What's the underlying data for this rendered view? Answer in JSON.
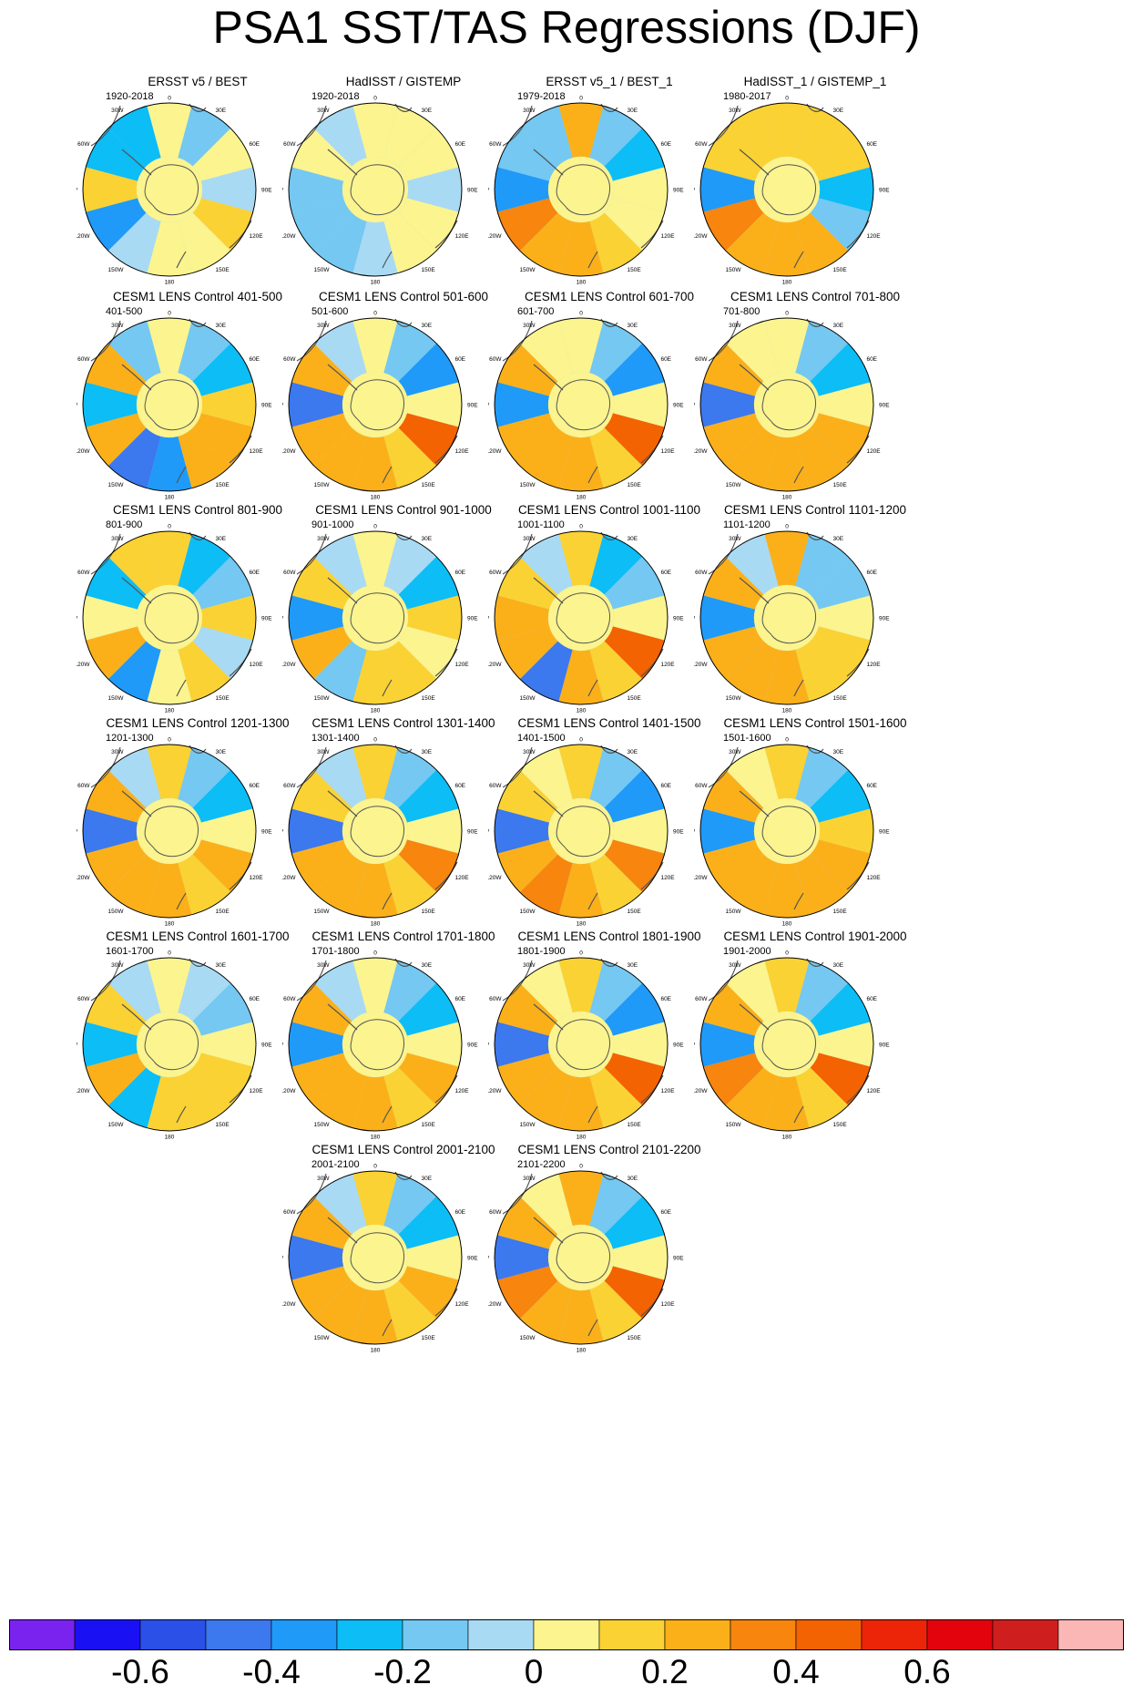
{
  "title": "PSA1 SST/TAS Regressions (DJF)",
  "chart_data": {
    "type": "heatmap",
    "map_projection": "south polar stereographic",
    "longitude_labels": [
      "0",
      "30E",
      "60E",
      "90E",
      "120E",
      "150E",
      "180",
      "150W",
      "120W",
      "90W",
      "60W",
      "30W"
    ],
    "panels": [
      {
        "title": "ERSST v5 / BEST",
        "period": "1920-2018",
        "values": [
          0.05,
          -0.1,
          0.05,
          0.0,
          0.1,
          0.05,
          0.05,
          -0.05,
          -0.35,
          0.15,
          -0.25,
          -0.2
        ]
      },
      {
        "title": "HadISST / GISTEMP",
        "period": "1920-2018",
        "values": [
          0.05,
          0.05,
          0.05,
          -0.05,
          0.05,
          0.05,
          0.0,
          -0.15,
          -0.1,
          -0.1,
          0.05,
          -0.05
        ]
      },
      {
        "title": "ERSST v5_1 / BEST_1",
        "period": "1979-2018",
        "values": [
          0.25,
          -0.1,
          -0.2,
          0.05,
          0.05,
          0.1,
          0.2,
          0.3,
          0.35,
          -0.35,
          -0.1,
          -0.15
        ]
      },
      {
        "title": "HadISST_1 / GISTEMP_1",
        "period": "1980-2017",
        "values": [
          0.15,
          0.1,
          0.15,
          -0.25,
          -0.1,
          0.2,
          0.25,
          0.3,
          0.35,
          -0.3,
          0.15,
          0.1
        ]
      },
      {
        "title": "CESM1 LENS Control 401-500",
        "period": "401-500",
        "values": [
          0.05,
          -0.1,
          -0.2,
          0.15,
          0.2,
          0.25,
          -0.35,
          -0.5,
          0.3,
          -0.25,
          0.2,
          -0.1
        ]
      },
      {
        "title": "CESM1 LENS Control 501-600",
        "period": "501-600",
        "values": [
          0.05,
          -0.1,
          -0.3,
          0.05,
          0.45,
          0.15,
          0.25,
          0.3,
          0.3,
          -0.4,
          0.25,
          0.0
        ]
      },
      {
        "title": "CESM1 LENS Control 601-700",
        "period": "601-700",
        "values": [
          0.05,
          -0.1,
          -0.3,
          0.05,
          0.45,
          0.15,
          0.25,
          0.3,
          0.3,
          -0.35,
          0.25,
          0.05
        ]
      },
      {
        "title": "CESM1 LENS Control 701-800",
        "period": "701-800",
        "values": [
          0.05,
          -0.1,
          -0.2,
          0.05,
          0.3,
          0.2,
          0.25,
          0.3,
          0.3,
          -0.45,
          0.25,
          0.05
        ]
      },
      {
        "title": "CESM1 LENS Control 801-900",
        "period": "801-900",
        "values": [
          0.1,
          -0.2,
          -0.1,
          0.15,
          0.0,
          0.1,
          0.05,
          -0.35,
          0.25,
          0.05,
          -0.2,
          0.1
        ]
      },
      {
        "title": "CESM1 LENS Control 901-1000",
        "period": "901-1000",
        "values": [
          0.05,
          0.0,
          -0.2,
          0.1,
          0.05,
          0.1,
          0.15,
          -0.15,
          0.25,
          -0.3,
          0.1,
          -0.05
        ]
      },
      {
        "title": "CESM1 LENS Control 1001-1100",
        "period": "1001-1100",
        "values": [
          0.1,
          -0.2,
          -0.15,
          0.05,
          0.4,
          0.15,
          0.2,
          -0.4,
          0.25,
          0.2,
          0.1,
          -0.05
        ]
      },
      {
        "title": "CESM1 LENS Control 1101-1200",
        "period": "1101-1200",
        "values": [
          0.2,
          -0.1,
          -0.15,
          0.05,
          0.15,
          0.1,
          0.2,
          0.25,
          0.25,
          -0.35,
          0.25,
          0.0
        ]
      },
      {
        "title": "CESM1 LENS Control 1201-1300",
        "period": "1201-1300",
        "values": [
          0.1,
          -0.1,
          -0.2,
          0.05,
          0.3,
          0.1,
          0.2,
          0.3,
          0.3,
          -0.45,
          0.2,
          0.0
        ]
      },
      {
        "title": "CESM1 LENS Control 1301-1400",
        "period": "1301-1400",
        "values": [
          0.1,
          -0.1,
          -0.2,
          0.05,
          0.35,
          0.1,
          0.25,
          0.3,
          0.3,
          -0.4,
          0.15,
          0.0
        ]
      },
      {
        "title": "CESM1 LENS Control 1401-1500",
        "period": "1401-1500",
        "values": [
          0.1,
          -0.1,
          -0.3,
          0.05,
          0.35,
          0.1,
          0.3,
          0.35,
          0.3,
          -0.4,
          0.1,
          0.05
        ]
      },
      {
        "title": "CESM1 LENS Control 1501-1600",
        "period": "1501-1600",
        "values": [
          0.15,
          -0.1,
          -0.25,
          0.1,
          0.3,
          0.2,
          0.25,
          0.3,
          0.3,
          -0.35,
          0.2,
          0.05
        ]
      },
      {
        "title": "CESM1 LENS Control 1601-1700",
        "period": "1601-1700",
        "values": [
          0.05,
          0.0,
          -0.15,
          0.05,
          0.15,
          0.1,
          0.15,
          -0.2,
          0.25,
          -0.2,
          0.1,
          -0.05
        ]
      },
      {
        "title": "CESM1 LENS Control 1701-1800",
        "period": "1701-1800",
        "values": [
          0.05,
          -0.1,
          -0.2,
          0.05,
          0.3,
          0.15,
          0.2,
          0.25,
          0.25,
          -0.3,
          0.2,
          0.0
        ]
      },
      {
        "title": "CESM1 LENS Control 1801-1900",
        "period": "1801-1900",
        "values": [
          0.1,
          -0.1,
          -0.3,
          0.05,
          0.45,
          0.15,
          0.25,
          0.3,
          0.3,
          -0.45,
          0.25,
          0.05
        ]
      },
      {
        "title": "CESM1 LENS Control 1901-2000",
        "period": "1901-2000",
        "values": [
          0.1,
          -0.1,
          -0.25,
          0.05,
          0.45,
          0.15,
          0.2,
          0.3,
          0.35,
          -0.35,
          0.2,
          0.05
        ]
      },
      {
        "title": "CESM1 LENS Control 2001-2100",
        "period": "2001-2100",
        "values": [
          0.1,
          -0.1,
          -0.25,
          0.05,
          0.3,
          0.15,
          0.2,
          0.3,
          0.3,
          -0.4,
          0.2,
          0.0
        ]
      },
      {
        "title": "CESM1 LENS Control 2101-2200",
        "period": "2101-2200",
        "values": [
          0.2,
          -0.1,
          -0.25,
          0.05,
          0.45,
          0.15,
          0.25,
          0.3,
          0.35,
          -0.4,
          0.25,
          0.05
        ]
      }
    ],
    "colorbar": {
      "levels": [
        -0.75,
        -0.65,
        -0.55,
        -0.45,
        -0.35,
        -0.25,
        -0.15,
        -0.05,
        0.05,
        0.15,
        0.25,
        0.35,
        0.45,
        0.55,
        0.65,
        0.75,
        0.85
      ],
      "colors": [
        "#7a23ee",
        "#1a10f4",
        "#2b50e8",
        "#3c78ee",
        "#1f9af9",
        "#0cbdf6",
        "#74c8f1",
        "#a9daf3",
        "#fbf48f",
        "#fbd233",
        "#fbb01a",
        "#f7850e",
        "#f36302",
        "#ec2508",
        "#e2030c",
        "#ce1f1e",
        "#fbb7b6"
      ],
      "tick_labels": [
        "-0.6",
        "-0.4",
        "-0.2",
        "0",
        "0.2",
        "0.4",
        "0.6"
      ],
      "tick_values": [
        -0.6,
        -0.4,
        -0.2,
        0.0,
        0.2,
        0.4,
        0.6
      ]
    }
  }
}
